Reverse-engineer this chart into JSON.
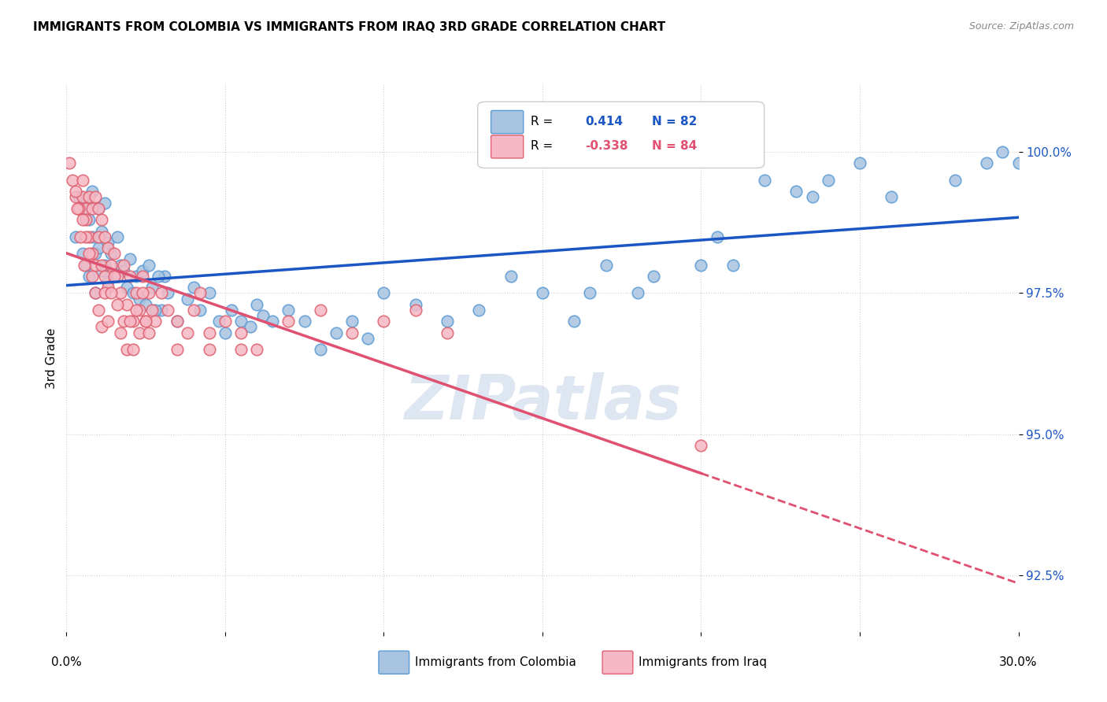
{
  "title": "IMMIGRANTS FROM COLOMBIA VS IMMIGRANTS FROM IRAQ 3RD GRADE CORRELATION CHART",
  "source": "Source: ZipAtlas.com",
  "ylabel": "3rd Grade",
  "yticks": [
    92.5,
    95.0,
    97.5,
    100.0
  ],
  "ytick_labels": [
    "92.5%",
    "95.0%",
    "97.5%",
    "100.0%"
  ],
  "xlim": [
    0.0,
    30.0
  ],
  "ylim": [
    91.5,
    101.2
  ],
  "r_colombia": 0.414,
  "n_colombia": 82,
  "r_iraq": -0.338,
  "n_iraq": 84,
  "colombia_color": "#a8c4e0",
  "colombia_edge": "#5b9bd5",
  "iraq_color": "#f5b8c4",
  "iraq_edge": "#e06070",
  "trend_colombia_color": "#1a56c4",
  "trend_iraq_color": "#e05070",
  "watermark": "ZIPatlas",
  "watermark_color": "#c8d8e8",
  "colombia_x": [
    0.3,
    0.4,
    0.5,
    0.5,
    0.6,
    0.6,
    0.7,
    0.7,
    0.8,
    0.8,
    0.9,
    0.9,
    1.0,
    1.0,
    1.1,
    1.1,
    1.2,
    1.2,
    1.3,
    1.3,
    1.4,
    1.5,
    1.6,
    1.7,
    1.8,
    1.9,
    2.0,
    2.1,
    2.2,
    2.3,
    2.4,
    2.5,
    2.6,
    2.7,
    3.0,
    3.1,
    3.2,
    3.5,
    3.8,
    4.0,
    4.2,
    4.5,
    4.8,
    5.0,
    5.2,
    5.5,
    5.8,
    6.0,
    6.2,
    6.5,
    7.0,
    7.5,
    8.0,
    8.5,
    9.0,
    9.5,
    10.0,
    11.0,
    12.0,
    13.0,
    14.0,
    15.0,
    16.0,
    17.0,
    18.0,
    20.0,
    22.0,
    23.0,
    24.0,
    25.0,
    26.0,
    28.0,
    29.0,
    29.5,
    30.0,
    20.5,
    21.0,
    23.5,
    18.5,
    16.5,
    2.8,
    2.9
  ],
  "colombia_y": [
    98.5,
    99.2,
    99.0,
    98.2,
    99.1,
    98.0,
    98.8,
    97.8,
    99.3,
    98.5,
    98.2,
    97.5,
    99.0,
    98.3,
    98.6,
    97.9,
    99.1,
    98.0,
    98.4,
    97.7,
    98.2,
    97.8,
    98.5,
    98.0,
    97.9,
    97.6,
    98.1,
    97.5,
    97.8,
    97.4,
    97.9,
    97.3,
    98.0,
    97.6,
    97.2,
    97.8,
    97.5,
    97.0,
    97.4,
    97.6,
    97.2,
    97.5,
    97.0,
    96.8,
    97.2,
    97.0,
    96.9,
    97.3,
    97.1,
    97.0,
    97.2,
    97.0,
    96.5,
    96.8,
    97.0,
    96.7,
    97.5,
    97.3,
    97.0,
    97.2,
    97.8,
    97.5,
    97.0,
    98.0,
    97.5,
    98.0,
    99.5,
    99.3,
    99.5,
    99.8,
    99.2,
    99.5,
    99.8,
    100.0,
    99.8,
    98.5,
    98.0,
    99.2,
    97.8,
    97.5,
    97.2,
    97.8
  ],
  "iraq_x": [
    0.1,
    0.2,
    0.3,
    0.4,
    0.5,
    0.5,
    0.6,
    0.6,
    0.7,
    0.7,
    0.8,
    0.8,
    0.9,
    0.9,
    1.0,
    1.0,
    1.1,
    1.1,
    1.2,
    1.2,
    1.3,
    1.3,
    1.4,
    1.5,
    1.6,
    1.7,
    1.8,
    1.9,
    2.0,
    2.1,
    2.2,
    2.3,
    2.4,
    2.5,
    2.6,
    2.7,
    2.8,
    3.0,
    3.2,
    3.5,
    3.8,
    4.0,
    4.2,
    4.5,
    5.0,
    5.5,
    6.0,
    7.0,
    8.0,
    9.0,
    10.0,
    11.0,
    12.0,
    0.3,
    0.4,
    0.5,
    0.6,
    0.7,
    0.8,
    0.9,
    1.0,
    1.1,
    1.2,
    1.3,
    1.4,
    1.5,
    1.6,
    1.7,
    1.8,
    1.9,
    2.0,
    2.1,
    2.2,
    2.3,
    2.4,
    2.5,
    2.6,
    3.5,
    4.5,
    5.5,
    20.0,
    0.35,
    0.45,
    0.55
  ],
  "iraq_y": [
    99.8,
    99.5,
    99.2,
    99.0,
    99.5,
    99.2,
    99.0,
    98.8,
    99.2,
    98.5,
    99.0,
    98.2,
    99.2,
    98.0,
    99.0,
    98.5,
    98.8,
    98.0,
    98.5,
    97.8,
    98.3,
    97.6,
    98.0,
    98.2,
    97.8,
    97.5,
    98.0,
    97.3,
    97.8,
    97.0,
    97.5,
    97.2,
    97.8,
    97.0,
    97.5,
    97.2,
    97.0,
    97.5,
    97.2,
    97.0,
    96.8,
    97.2,
    97.5,
    96.5,
    97.0,
    96.8,
    96.5,
    97.0,
    97.2,
    96.8,
    97.0,
    97.2,
    96.8,
    99.3,
    99.0,
    98.8,
    98.5,
    98.2,
    97.8,
    97.5,
    97.2,
    96.9,
    97.5,
    97.0,
    97.5,
    97.8,
    97.3,
    96.8,
    97.0,
    96.5,
    97.0,
    96.5,
    97.2,
    96.8,
    97.5,
    97.0,
    96.8,
    96.5,
    96.8,
    96.5,
    94.8,
    99.0,
    98.5,
    98.0
  ]
}
